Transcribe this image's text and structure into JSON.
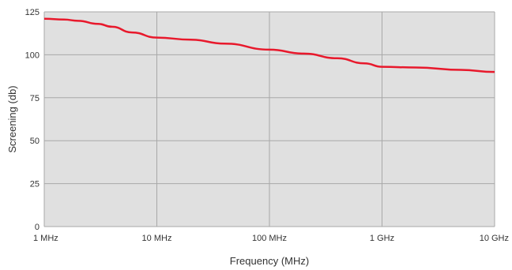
{
  "chart_data": {
    "type": "line",
    "xlabel": "Frequency (MHz)",
    "ylabel": "Screening (db)",
    "x_scale": "log",
    "x_ticks": [
      {
        "value": 1,
        "label": "1 MHz"
      },
      {
        "value": 10,
        "label": "10 MHz"
      },
      {
        "value": 100,
        "label": "100 MHz"
      },
      {
        "value": 1000,
        "label": "1 GHz"
      },
      {
        "value": 10000,
        "label": "10 GHz"
      }
    ],
    "y_ticks": [
      0,
      25,
      50,
      75,
      100,
      125
    ],
    "xlim": [
      1,
      10000
    ],
    "ylim": [
      0,
      125
    ],
    "grid": true,
    "background": "#e0e0e0",
    "grid_color": "#a8a8a8",
    "series": [
      {
        "color": "#e8192c",
        "x": [
          1,
          1.5,
          2,
          3,
          4,
          6,
          10,
          20,
          40,
          100,
          200,
          400,
          700,
          1000,
          2000,
          5000,
          10000
        ],
        "y": [
          121,
          120.5,
          119.8,
          118,
          116.3,
          113,
          110,
          108.8,
          106.5,
          103,
          100.7,
          98,
          95,
          93,
          92.6,
          91.2,
          90
        ]
      }
    ]
  }
}
